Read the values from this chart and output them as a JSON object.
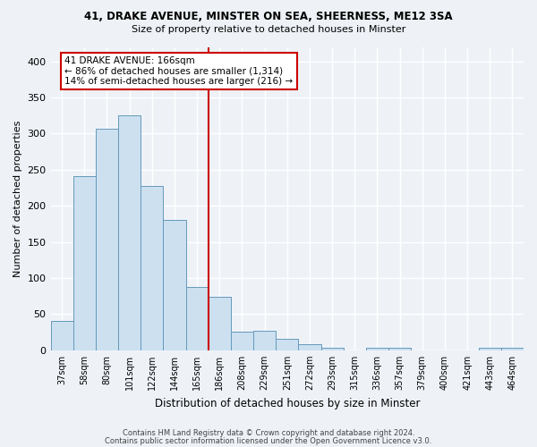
{
  "title1": "41, DRAKE AVENUE, MINSTER ON SEA, SHEERNESS, ME12 3SA",
  "title2": "Size of property relative to detached houses in Minster",
  "xlabel": "Distribution of detached houses by size in Minster",
  "ylabel": "Number of detached properties",
  "bar_labels": [
    "37sqm",
    "58sqm",
    "80sqm",
    "101sqm",
    "122sqm",
    "144sqm",
    "165sqm",
    "186sqm",
    "208sqm",
    "229sqm",
    "251sqm",
    "272sqm",
    "293sqm",
    "315sqm",
    "336sqm",
    "357sqm",
    "379sqm",
    "400sqm",
    "421sqm",
    "443sqm",
    "464sqm"
  ],
  "bar_values": [
    41,
    241,
    307,
    325,
    227,
    181,
    88,
    74,
    26,
    27,
    16,
    9,
    4,
    0,
    4,
    3,
    0,
    0,
    0,
    4,
    4
  ],
  "bar_color": "#cce0f0",
  "bar_edge_color": "#6699bb",
  "vline_color": "#cc0000",
  "annotation_text": "41 DRAKE AVENUE: 166sqm\n← 86% of detached houses are smaller (1,314)\n14% of semi-detached houses are larger (216) →",
  "annotation_box_color": "white",
  "annotation_box_edge_color": "#cc0000",
  "ylim": [
    0,
    420
  ],
  "yticks": [
    0,
    50,
    100,
    150,
    200,
    250,
    300,
    350,
    400
  ],
  "bg_color": "#eef2f7",
  "grid_color": "white",
  "footer_line1": "Contains HM Land Registry data © Crown copyright and database right 2024.",
  "footer_line2": "Contains public sector information licensed under the Open Government Licence v3.0."
}
